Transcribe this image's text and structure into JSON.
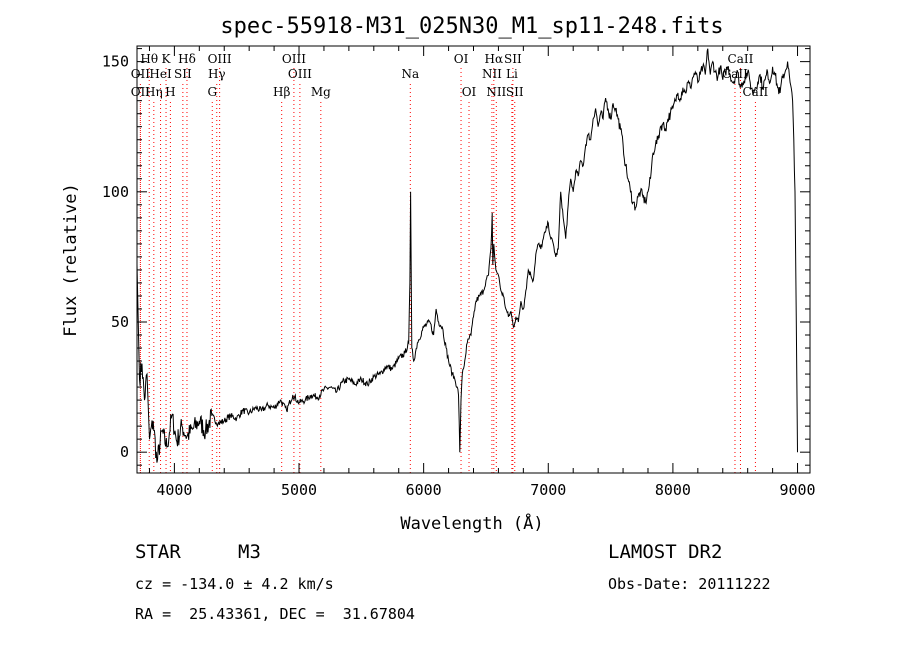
{
  "chart_data": {
    "type": "line",
    "title": "spec-55918-M31_025N30_M1_sp11-248.fits",
    "xlabel": "Wavelength (Å)",
    "ylabel": "Flux (relative)",
    "xlim": [
      3700,
      9100
    ],
    "ylim": [
      -8,
      156
    ],
    "x_ticks": [
      4000,
      5000,
      6000,
      7000,
      8000,
      9000
    ],
    "y_ticks": [
      0,
      50,
      100,
      150
    ],
    "grid": false,
    "series": [
      {
        "values_x": [
          3700,
          3720,
          3740,
          3760,
          3780,
          3800,
          3830,
          3860,
          3900,
          3940,
          3980,
          4020,
          4060,
          4100,
          4150,
          4200,
          4250,
          4300,
          4350,
          4400,
          4450,
          4500,
          4550,
          4600,
          4650,
          4700,
          4750,
          4800,
          4850,
          4900,
          4950,
          5000,
          5050,
          5100,
          5150,
          5200,
          5250,
          5300,
          5350,
          5400,
          5450,
          5500,
          5550,
          5600,
          5650,
          5700,
          5750,
          5800,
          5850,
          5880,
          5890,
          5895,
          5905,
          5920,
          5950,
          6000,
          6050,
          6080,
          6100,
          6120,
          6150,
          6180,
          6200,
          6230,
          6250,
          6270,
          6280,
          6290,
          6300,
          6310,
          6320,
          6350,
          6380,
          6400,
          6420,
          6450,
          6480,
          6500,
          6520,
          6540,
          6550,
          6555,
          6563,
          6570,
          6580,
          6600,
          6620,
          6640,
          6660,
          6680,
          6700,
          6720,
          6740,
          6760,
          6780,
          6800,
          6820,
          6840,
          6860,
          6880,
          6900,
          6920,
          6940,
          6960,
          6980,
          7000,
          7020,
          7040,
          7060,
          7080,
          7100,
          7120,
          7140,
          7160,
          7180,
          7200,
          7220,
          7240,
          7260,
          7280,
          7300,
          7320,
          7340,
          7360,
          7380,
          7400,
          7420,
          7440,
          7460,
          7480,
          7500,
          7520,
          7540,
          7560,
          7580,
          7600,
          7620,
          7640,
          7660,
          7680,
          7700,
          7720,
          7740,
          7760,
          7780,
          7800,
          7820,
          7840,
          7860,
          7880,
          7900,
          7920,
          7940,
          7960,
          7980,
          8000,
          8020,
          8040,
          8060,
          8080,
          8100,
          8120,
          8140,
          8160,
          8180,
          8200,
          8220,
          8240,
          8260,
          8280,
          8300,
          8320,
          8340,
          8360,
          8380,
          8400,
          8420,
          8440,
          8460,
          8480,
          8500,
          8520,
          8540,
          8560,
          8580,
          8600,
          8620,
          8640,
          8660,
          8680,
          8700,
          8720,
          8740,
          8760,
          8780,
          8800,
          8820,
          8840,
          8860,
          8880,
          8900,
          8920,
          8940,
          8960,
          8970,
          8980,
          8990,
          9000
        ],
        "values_y": [
          72,
          28,
          34,
          20,
          30,
          5,
          12,
          -4,
          8,
          2,
          14,
          4,
          10,
          6,
          9,
          12,
          8,
          14,
          11,
          12,
          14,
          13,
          16,
          15,
          17,
          16,
          18,
          17,
          20,
          16,
          22,
          19,
          20,
          22,
          21,
          24,
          25,
          23,
          27,
          28,
          26,
          28,
          26,
          29,
          30,
          33,
          32,
          36,
          38,
          42,
          65,
          100,
          40,
          35,
          42,
          48,
          50,
          45,
          55,
          50,
          48,
          40,
          35,
          30,
          28,
          25,
          22,
          0,
          20,
          30,
          32,
          42,
          45,
          52,
          58,
          60,
          62,
          66,
          68,
          78,
          92,
          72,
          80,
          75,
          70,
          68,
          62,
          60,
          55,
          52,
          54,
          48,
          52,
          50,
          58,
          55,
          62,
          70,
          68,
          66,
          76,
          80,
          78,
          82,
          85,
          88,
          82,
          80,
          75,
          78,
          100,
          90,
          82,
          95,
          105,
          100,
          108,
          106,
          112,
          110,
          118,
          122,
          120,
          128,
          132,
          125,
          130,
          128,
          136,
          132,
          128,
          134,
          132,
          128,
          124,
          118,
          110,
          105,
          100,
          96,
          94,
          98,
          100,
          98,
          96,
          100,
          105,
          115,
          118,
          120,
          125,
          126,
          124,
          128,
          130,
          132,
          135,
          138,
          136,
          140,
          138,
          142,
          140,
          144,
          146,
          142,
          145,
          148,
          145,
          155,
          145,
          150,
          146,
          144,
          148,
          143,
          146,
          148,
          145,
          142,
          144,
          146,
          140,
          142,
          144,
          146,
          142,
          138,
          140,
          142,
          145,
          140,
          143,
          146,
          142,
          148,
          145,
          140,
          138,
          144,
          146,
          150,
          142,
          135,
          120,
          100,
          50,
          0
        ]
      }
    ],
    "lines": [
      {
        "label": "Hθ",
        "row": 1,
        "x": 3798
      },
      {
        "label": "K",
        "row": 1,
        "x": 3933
      },
      {
        "label": "Hδ",
        "row": 1,
        "x": 4101
      },
      {
        "label": "OIII",
        "row": 1,
        "x": 4363
      },
      {
        "label": "OIII",
        "row": 1,
        "x": 4959
      },
      {
        "label": "OI",
        "row": 1,
        "x": 6300
      },
      {
        "label": "Hα",
        "row": 1,
        "x": 6563
      },
      {
        "label": "SII",
        "row": 1,
        "x": 6716
      },
      {
        "label": "CaII",
        "row": 1,
        "x": 8542
      },
      {
        "label": "OII",
        "row": 2,
        "x": 3727
      },
      {
        "label": "HeI",
        "row": 2,
        "x": 3889
      },
      {
        "label": "SII",
        "row": 2,
        "x": 4068
      },
      {
        "label": "Hγ",
        "row": 2,
        "x": 4340
      },
      {
        "label": "OIII",
        "row": 2,
        "x": 5007
      },
      {
        "label": "Na",
        "row": 2,
        "x": 5893
      },
      {
        "label": "NII",
        "row": 2,
        "x": 6548
      },
      {
        "label": "Li",
        "row": 2,
        "x": 6708
      },
      {
        "label": "CaII",
        "row": 2,
        "x": 8498
      },
      {
        "label": "OII",
        "row": 3,
        "x": 3727
      },
      {
        "label": "Hη",
        "row": 3,
        "x": 3835
      },
      {
        "label": "H",
        "row": 3,
        "x": 3968
      },
      {
        "label": "G",
        "row": 3,
        "x": 4304
      },
      {
        "label": "Hβ",
        "row": 3,
        "x": 4861
      },
      {
        "label": "Mg",
        "row": 3,
        "x": 5175
      },
      {
        "label": "OI",
        "row": 3,
        "x": 6364
      },
      {
        "label": "NII",
        "row": 3,
        "x": 6583
      },
      {
        "label": "SII",
        "row": 3,
        "x": 6731
      },
      {
        "label": "CaII",
        "row": 3,
        "x": 8662
      }
    ],
    "colors": {
      "spectrum": "#000000",
      "line_markers": "#ff0000"
    }
  },
  "info": {
    "object_class": "STAR",
    "subclass": "M3",
    "survey": "LAMOST DR2",
    "cz": "cz = -134.0 ± 4.2 km/s",
    "obs_date": "Obs-Date: 20111222",
    "radec": "RA =  25.43361, DEC =  31.67804"
  }
}
